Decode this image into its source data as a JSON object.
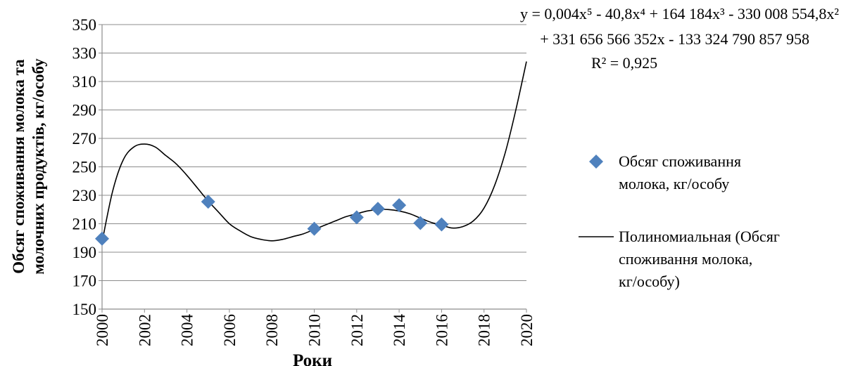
{
  "chart_data": {
    "type": "scatter",
    "xlabel": "Роки",
    "ylabel_lines": [
      "Обсяг споживання молока та",
      "молочних продуктів, кг/особу"
    ],
    "xlim": [
      2000,
      2020
    ],
    "ylim": [
      150,
      350
    ],
    "x_ticks": [
      2000,
      2002,
      2004,
      2006,
      2008,
      2010,
      2012,
      2014,
      2016,
      2018,
      2020
    ],
    "y_ticks": [
      150,
      170,
      190,
      210,
      230,
      250,
      270,
      290,
      310,
      330,
      350
    ],
    "grid": "horizontal",
    "legend_position": "right",
    "series": [
      {
        "name": "Обсяг споживання молока, кг/особу",
        "marker": "diamond",
        "color": "#4f81bd",
        "points": [
          {
            "x": 2000,
            "y": 199.5
          },
          {
            "x": 2005,
            "y": 225.5
          },
          {
            "x": 2010,
            "y": 206.5
          },
          {
            "x": 2012,
            "y": 214.5
          },
          {
            "x": 2013,
            "y": 220.5
          },
          {
            "x": 2014,
            "y": 223
          },
          {
            "x": 2015,
            "y": 210.5
          },
          {
            "x": 2016,
            "y": 209.5
          }
        ]
      },
      {
        "name": "Полиномиальная (Обсяг споживання молока, кг/особу)",
        "type": "trendline",
        "color": "#000000",
        "points": [
          {
            "x": 2000,
            "y": 197
          },
          {
            "x": 2000.5,
            "y": 233
          },
          {
            "x": 2001,
            "y": 255
          },
          {
            "x": 2001.5,
            "y": 264
          },
          {
            "x": 2002,
            "y": 266
          },
          {
            "x": 2002.5,
            "y": 264
          },
          {
            "x": 2003,
            "y": 258
          },
          {
            "x": 2003.5,
            "y": 252
          },
          {
            "x": 2004,
            "y": 244
          },
          {
            "x": 2004.5,
            "y": 235
          },
          {
            "x": 2005,
            "y": 226
          },
          {
            "x": 2005.5,
            "y": 218
          },
          {
            "x": 2006,
            "y": 210
          },
          {
            "x": 2006.5,
            "y": 205
          },
          {
            "x": 2007,
            "y": 201
          },
          {
            "x": 2007.5,
            "y": 199
          },
          {
            "x": 2008,
            "y": 198
          },
          {
            "x": 2008.5,
            "y": 199
          },
          {
            "x": 2009,
            "y": 201
          },
          {
            "x": 2009.5,
            "y": 203
          },
          {
            "x": 2010,
            "y": 206
          },
          {
            "x": 2010.5,
            "y": 209
          },
          {
            "x": 2011,
            "y": 212
          },
          {
            "x": 2011.5,
            "y": 215
          },
          {
            "x": 2012,
            "y": 217
          },
          {
            "x": 2012.5,
            "y": 219
          },
          {
            "x": 2013,
            "y": 220
          },
          {
            "x": 2013.5,
            "y": 220
          },
          {
            "x": 2014,
            "y": 219
          },
          {
            "x": 2014.5,
            "y": 217
          },
          {
            "x": 2015,
            "y": 214
          },
          {
            "x": 2015.5,
            "y": 211
          },
          {
            "x": 2016,
            "y": 209
          },
          {
            "x": 2016.5,
            "y": 207
          },
          {
            "x": 2017,
            "y": 208
          },
          {
            "x": 2017.5,
            "y": 212
          },
          {
            "x": 2018,
            "y": 221
          },
          {
            "x": 2018.5,
            "y": 237
          },
          {
            "x": 2019,
            "y": 260
          },
          {
            "x": 2019.5,
            "y": 290
          },
          {
            "x": 2020,
            "y": 324
          }
        ]
      }
    ],
    "legend_lines": [
      [
        "Обсяг споживання",
        "молока, кг/особу"
      ],
      [
        "Полиномиальная (Обсяг",
        "споживання молока,",
        "кг/особу)"
      ]
    ],
    "annotations": {
      "equation_line1": "y = 0,004x⁵ - 40,8x⁴ + 164 184x³ - 330 008 554,8x²",
      "equation_line2": "+ 331 656 566 352x - 133 324 790 857 958",
      "r_squared": "R² = 0,925"
    }
  }
}
